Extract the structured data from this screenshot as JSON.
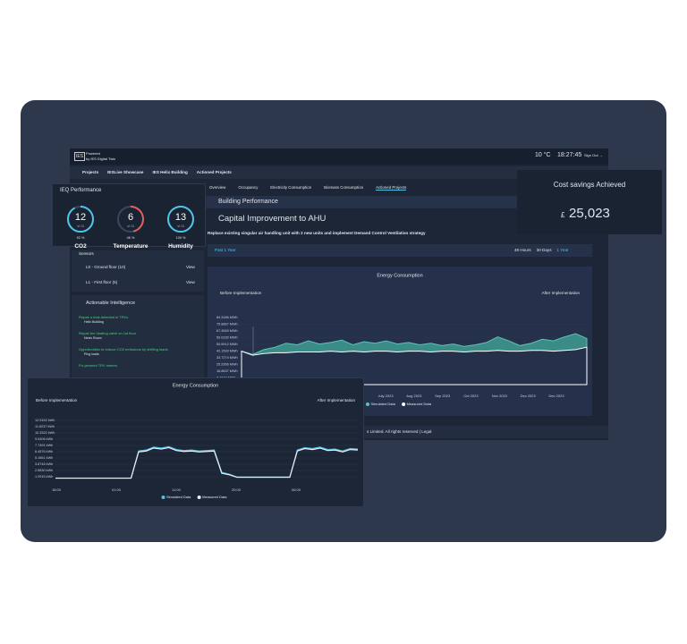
{
  "header": {
    "logo": "IES",
    "powered": "Powered",
    "powered_by": "by IES Digital Twin",
    "temperature": "10 °C",
    "time": "18:27:45",
    "sign_out": "Sign Out →"
  },
  "breadcrumb": [
    "Projects",
    "IESLive Showcase",
    "IES Helix Building",
    "Actioned Projects"
  ],
  "tabs": [
    "Overview",
    "Occupancy",
    "Electricity Consumption",
    "Biomass Consumption",
    "Actioned Projects"
  ],
  "active_tab": 4,
  "section_title": "Building Performance",
  "project": {
    "title": "Capital Improvement to AHU",
    "description": "Replace existing singular air handling unit with 2 new units and implement Demand Control Ventilation strategy"
  },
  "filter": {
    "period": "Past 1 Year",
    "ranges": [
      "48 Hours",
      "30 Days",
      "1 Year"
    ],
    "active_range": 2
  },
  "ieq": {
    "title": "IEQ Performance",
    "gauges": [
      {
        "value": 12,
        "max": 13,
        "max_label": "of 13",
        "name": "CO2",
        "score": "92 %",
        "color": "#4fc3e8"
      },
      {
        "value": 6,
        "max": 13,
        "max_label": "of 13",
        "name": "Temperature",
        "score": "46 %",
        "color": "#e0605a"
      },
      {
        "value": 13,
        "max": 13,
        "max_label": "of 13",
        "name": "Humidity",
        "score": "100 %",
        "color": "#4fc3e8"
      }
    ]
  },
  "sensors": {
    "title": "Sensors",
    "rows": [
      {
        "label": "L0 - Ground floor (10)",
        "action": "View"
      },
      {
        "label": "L1 - First floor (5)",
        "action": "View"
      }
    ]
  },
  "actionable": {
    "title": "Actionable Intelligence",
    "items": [
      {
        "title": "Repair a leak detected in TRVs",
        "location": "Helix Building"
      },
      {
        "title": "Repair the heating valve on 1st floor",
        "location": "Nexis Room"
      },
      {
        "title": "Opportunities to reduce CO2 emissions by shifting loads",
        "location": "Plug loads"
      },
      {
        "title": "Fix jammed TRV meters",
        "location": ""
      }
    ]
  },
  "cost_savings": {
    "title": "Cost savings Achieved",
    "currency": "£",
    "amount": "25,023"
  },
  "footer": "s Limited. All rights reserved | Legal",
  "chart_data": [
    {
      "type": "area",
      "title": "Energy Consumption",
      "annotation_left": "Before Implementation",
      "annotation_right": "After Implementation",
      "ylim": [
        0,
        84.3186
      ],
      "yticks": [
        {
          "value": 84.3186,
          "label": "84.3186 MWh"
        },
        {
          "value": 75.8867,
          "label": "75.8867 MWh"
        },
        {
          "value": 67.4549,
          "label": "67.4549 MWh"
        },
        {
          "value": 59.023,
          "label": "59.0230 MWh"
        },
        {
          "value": 50.5912,
          "label": "50.5912 MWh"
        },
        {
          "value": 42.1593,
          "label": "42.1593 MWh"
        },
        {
          "value": 33.7274,
          "label": "33.7274 MWh"
        },
        {
          "value": 25.2956,
          "label": "25.2956 MWh"
        },
        {
          "value": 16.8637,
          "label": "16.8637 MWh"
        },
        {
          "value": 8.4319,
          "label": "8.4319 MWh"
        }
      ],
      "x_labels": [
        "July 2023",
        "Aug 2023",
        "Sep 2023",
        "Oct 2023",
        "Nov 2023",
        "Dec 2023",
        "Dec 2023"
      ],
      "series": [
        {
          "name": "Simulated Data",
          "color": "#5cc2b8",
          "fill": "#3b8c87",
          "values": [
            42,
            38,
            44,
            47,
            52,
            50,
            55,
            51,
            53,
            56,
            50,
            54,
            52,
            55,
            51,
            53,
            50,
            52,
            49,
            51,
            48,
            50,
            53,
            60,
            55,
            49,
            52,
            57,
            55,
            60,
            64,
            58
          ]
        },
        {
          "name": "Measured Data",
          "color": "#ffffff",
          "fill": "#25314a",
          "values": [
            42,
            37,
            39,
            40,
            40,
            41,
            41,
            41,
            42,
            41,
            42,
            41,
            42,
            42,
            41,
            42,
            42,
            41,
            42,
            42,
            41,
            42,
            42,
            43,
            42,
            42,
            43,
            43,
            42,
            43,
            44,
            47
          ]
        }
      ]
    },
    {
      "type": "line",
      "title": "Energy Consumption",
      "annotation_left": "Before Implementation",
      "annotation_right": "After Implementation",
      "ylim": [
        0,
        12.9152
      ],
      "yticks": [
        {
          "value": 12.9152,
          "label": "12.9152 kWh"
        },
        {
          "value": 11.6237,
          "label": "11.6237 kWh"
        },
        {
          "value": 10.3322,
          "label": "10.3322 kWh"
        },
        {
          "value": 9.0406,
          "label": "9.0406 kWh"
        },
        {
          "value": 7.7491,
          "label": "7.7491 kWh"
        },
        {
          "value": 6.4576,
          "label": "6.4576 kWh"
        },
        {
          "value": 5.1661,
          "label": "5.1661 kWh"
        },
        {
          "value": 3.8746,
          "label": "3.8746 kWh"
        },
        {
          "value": 2.583,
          "label": "2.5830 kWh"
        },
        {
          "value": 1.2915,
          "label": "1.2915 kWh"
        }
      ],
      "x_labels": [
        "18:00",
        "01:00",
        "11:00",
        "20:00",
        "06:00"
      ],
      "series": [
        {
          "name": "Simulated Data",
          "color": "#4fc3e8",
          "values": [
            1.0,
            1.0,
            1.0,
            1.0,
            1.0,
            1.0,
            1.0,
            1.0,
            1.0,
            1.0,
            1.0,
            6.6,
            6.8,
            7.4,
            7.2,
            7.5,
            6.9,
            6.7,
            6.8,
            6.6,
            6.7,
            6.8,
            2.2,
            1.8,
            1.2,
            1.2,
            1.2,
            1.2,
            1.2,
            1.2,
            1.2,
            1.2,
            6.8,
            7.3,
            7.1,
            7.4,
            6.9,
            7.0,
            6.6,
            7.1,
            7.0
          ]
        },
        {
          "name": "Measured Data",
          "color": "#e8eef5",
          "values": [
            1.0,
            1.0,
            1.0,
            1.0,
            1.0,
            1.0,
            1.0,
            1.0,
            1.0,
            1.0,
            1.0,
            6.4,
            6.6,
            7.2,
            7.0,
            7.3,
            6.7,
            6.5,
            6.6,
            6.4,
            6.5,
            6.6,
            2.0,
            1.7,
            1.2,
            1.2,
            1.2,
            1.2,
            1.2,
            1.2,
            1.2,
            1.2,
            6.6,
            7.1,
            6.9,
            7.2,
            6.7,
            6.8,
            6.4,
            6.9,
            6.8
          ]
        }
      ]
    }
  ]
}
